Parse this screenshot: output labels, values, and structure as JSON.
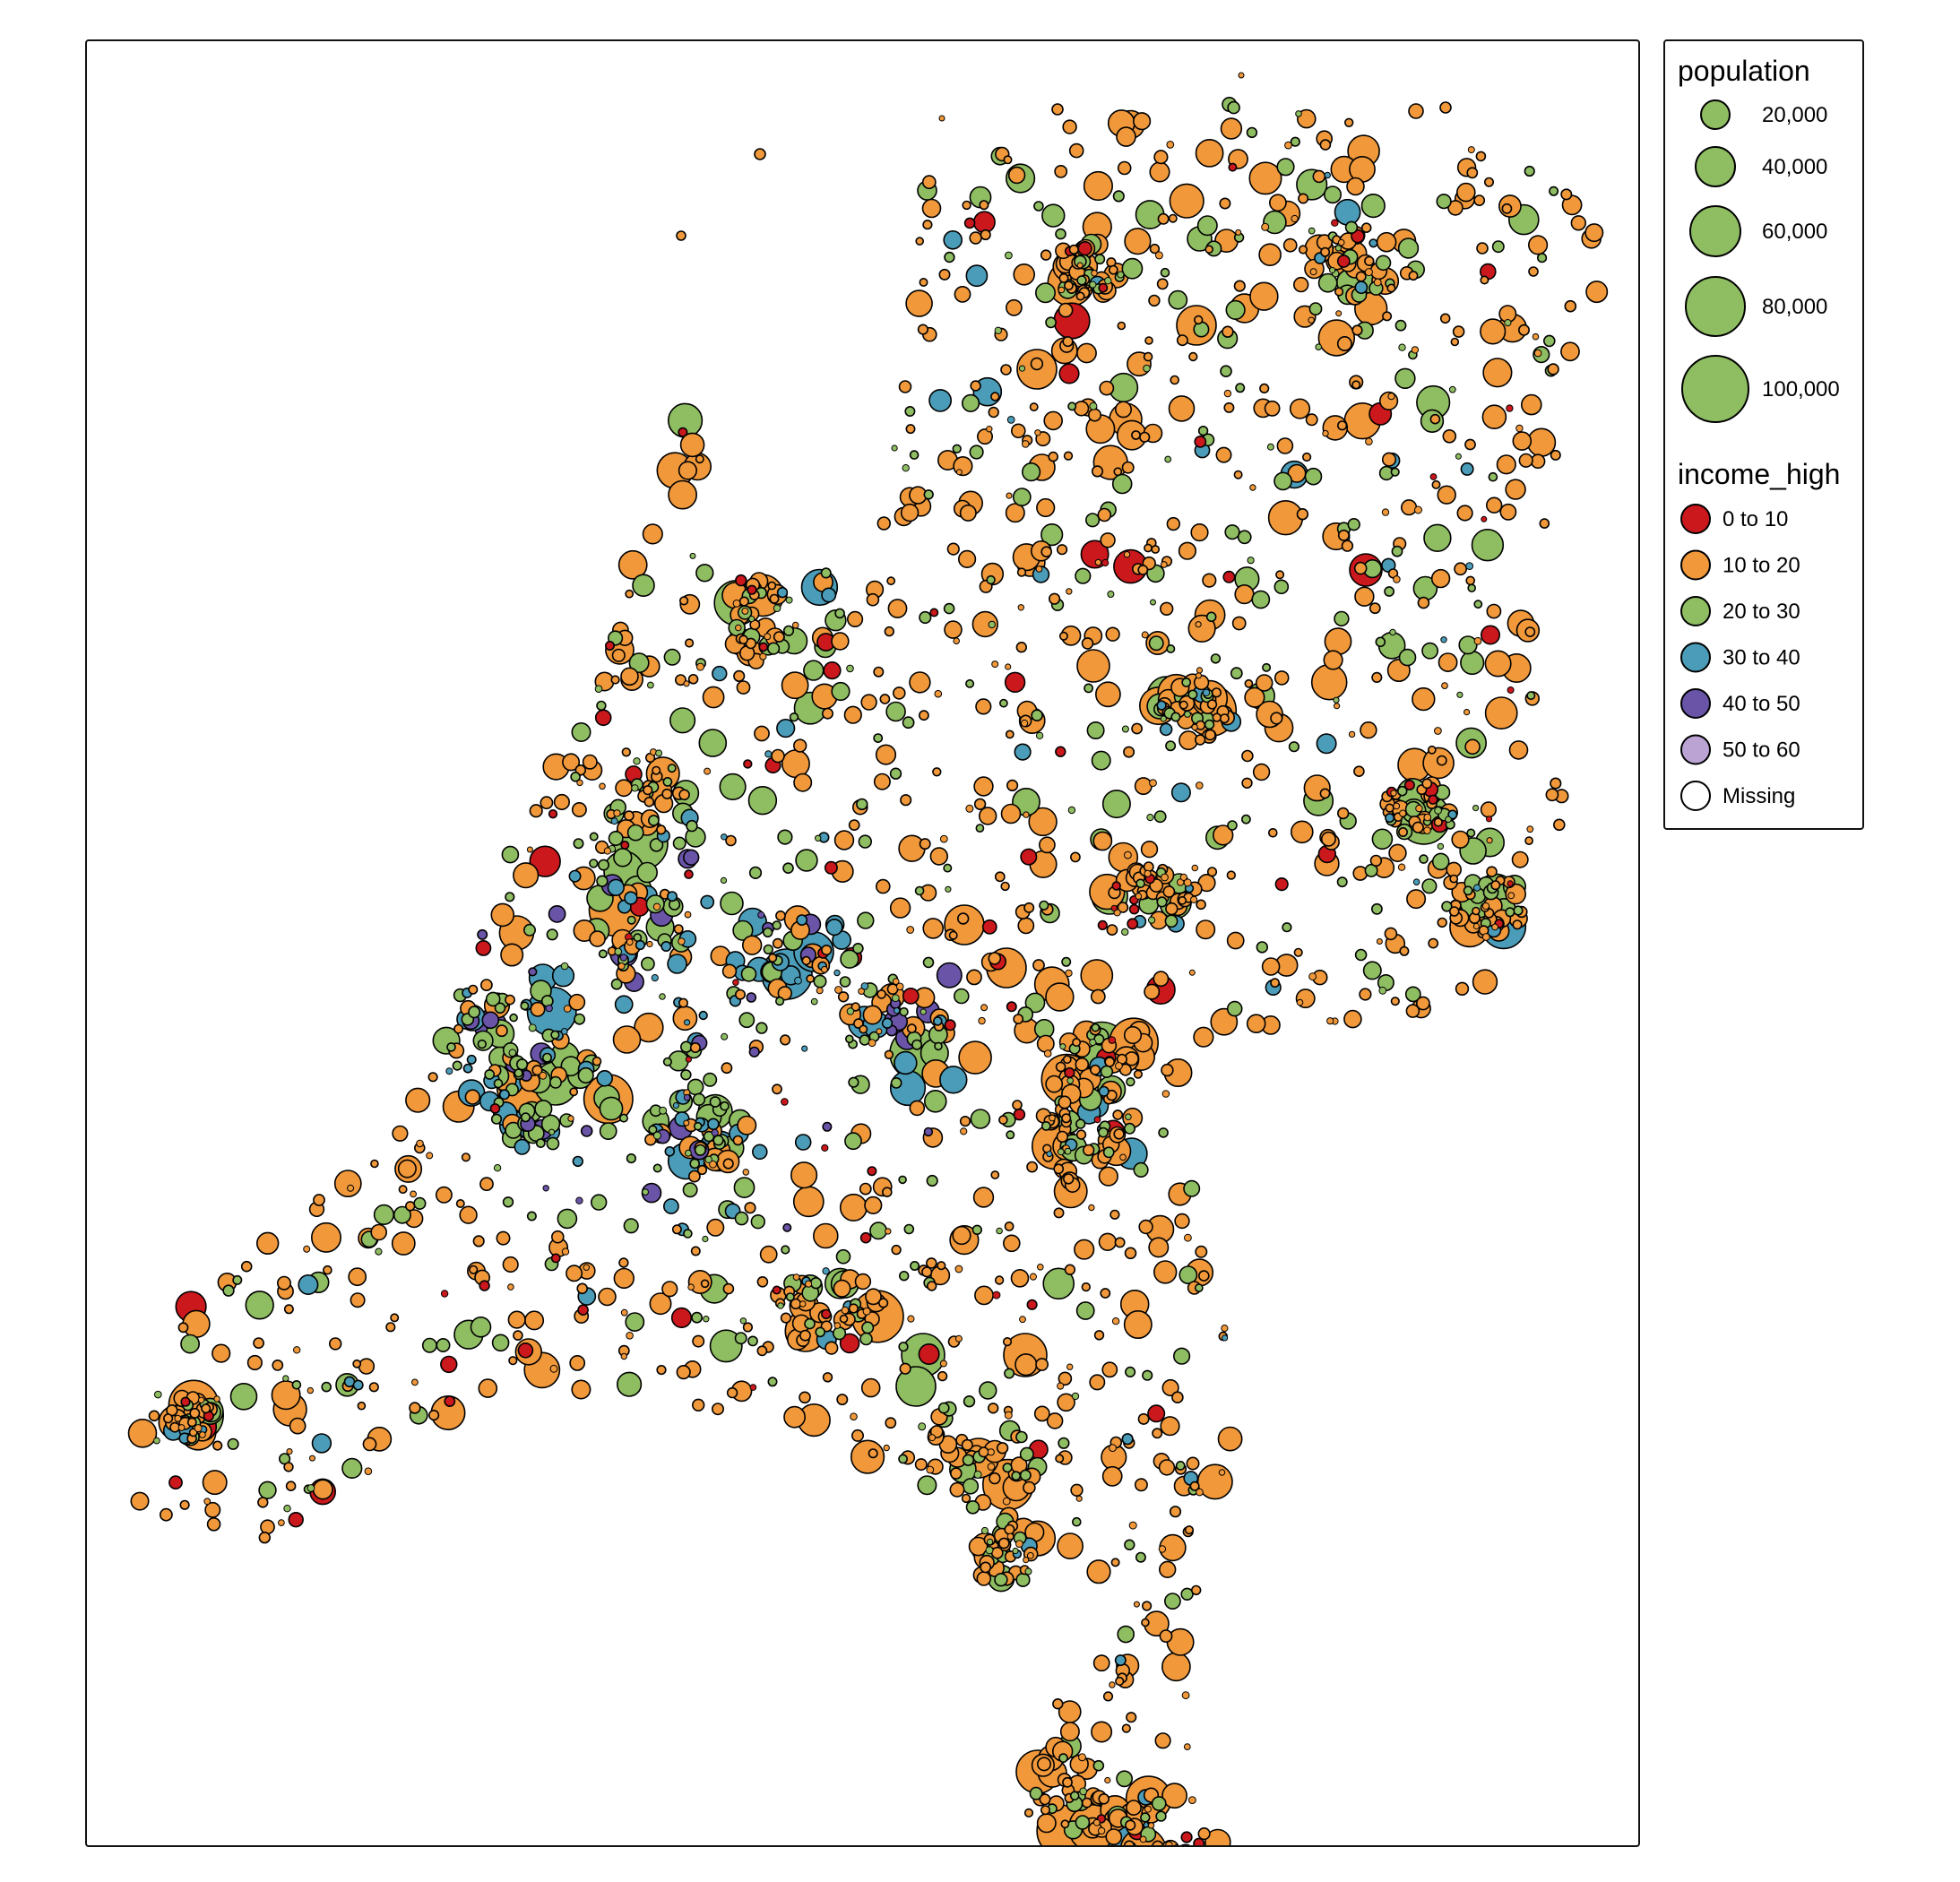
{
  "legend": {
    "size_title": "population",
    "size_items": [
      {
        "label": "20,000",
        "value": 20000
      },
      {
        "label": "40,000",
        "value": 40000
      },
      {
        "label": "60,000",
        "value": 60000
      },
      {
        "label": "80,000",
        "value": 80000
      },
      {
        "label": "100,000",
        "value": 100000
      }
    ],
    "color_title": "income_high",
    "color_items": [
      {
        "label": "0 to 10",
        "color": "#cb181d"
      },
      {
        "label": "10 to 20",
        "color": "#f0983a"
      },
      {
        "label": "20 to 30",
        "color": "#8fbd62"
      },
      {
        "label": "30 to 40",
        "color": "#4b9cb8"
      },
      {
        "label": "40 to 50",
        "color": "#6a54a8"
      },
      {
        "label": "50 to 60",
        "color": "#bba4d4"
      },
      {
        "label": "Missing",
        "color": "#ffffff"
      }
    ]
  },
  "chart_data": {
    "type": "scatter",
    "title": "",
    "size_variable": "population",
    "color_variable": "income_high",
    "legend_position": "right"
  }
}
